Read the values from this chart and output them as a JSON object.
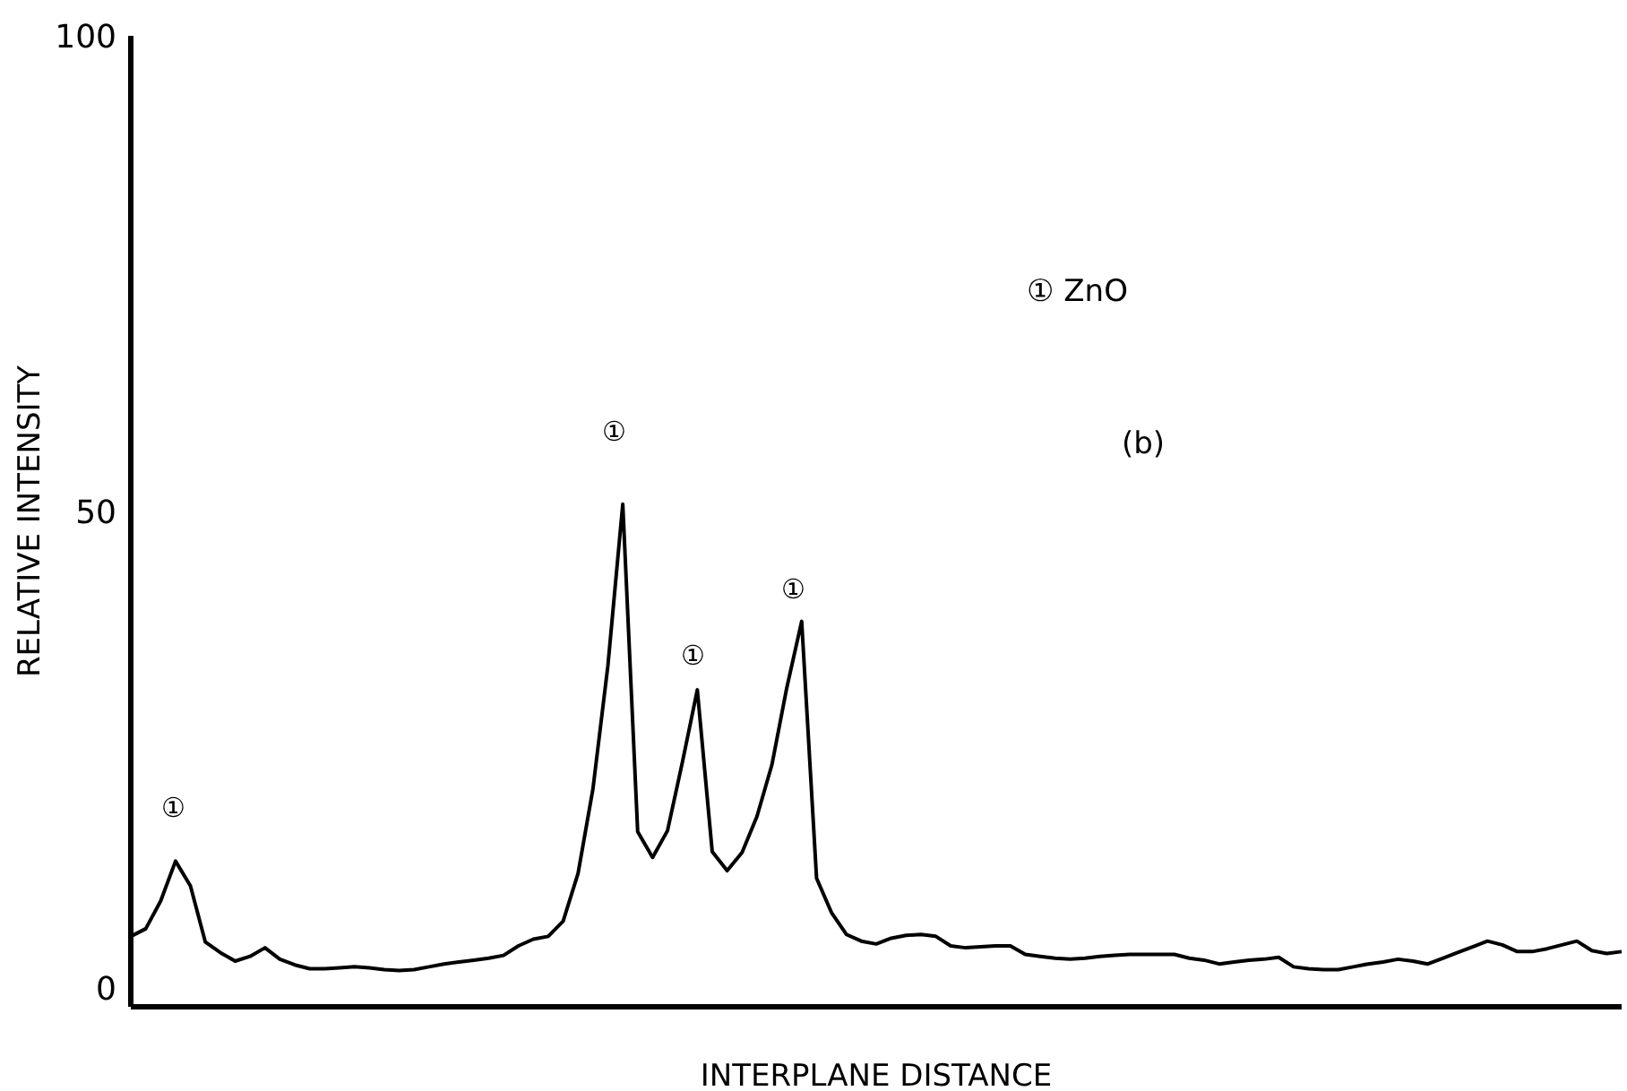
{
  "chart_data": {
    "type": "line",
    "xlabel": "INTERPLANE DISTANCE",
    "ylabel": "RELATIVE INTENSITY",
    "categories": [
      null,
      null,
      null,
      null,
      null,
      null,
      null,
      null,
      null,
      null,
      null,
      null,
      null,
      null,
      null,
      null,
      null,
      null,
      null,
      null,
      null,
      null,
      null,
      null,
      null,
      null,
      null,
      null,
      null,
      null,
      null,
      null,
      null,
      null,
      null,
      null,
      null,
      null,
      null,
      null,
      null,
      null,
      null,
      null,
      null,
      null,
      null,
      null,
      null,
      null,
      null,
      null,
      null,
      null,
      null,
      null,
      null,
      null,
      null,
      null,
      null,
      null,
      null,
      null,
      null,
      null,
      null,
      null,
      null,
      null,
      null,
      null,
      null,
      null,
      null,
      null,
      null,
      null,
      null,
      null,
      null,
      null,
      null,
      null,
      null,
      null,
      null,
      null,
      null,
      null,
      null,
      null,
      null,
      null,
      null,
      null,
      null,
      null,
      null,
      null,
      null
    ],
    "values": [
      5.4,
      6.2,
      9.1,
      13.3,
      10.7,
      4.8,
      3.7,
      2.8,
      3.3,
      4.2,
      3.0,
      2.4,
      2.0,
      2.0,
      2.1,
      2.2,
      2.1,
      1.9,
      1.8,
      1.9,
      2.2,
      2.5,
      2.7,
      2.9,
      3.1,
      3.4,
      4.4,
      5.1,
      5.4,
      7.0,
      12.0,
      20.9,
      33.8,
      50.8,
      16.4,
      13.7,
      16.5,
      23.7,
      31.3,
      14.3,
      12.3,
      14.2,
      18.0,
      23.4,
      31.5,
      38.5,
      11.5,
      7.9,
      5.6,
      4.9,
      4.6,
      5.2,
      5.5,
      5.6,
      5.4,
      4.4,
      4.2,
      4.3,
      4.4,
      4.4,
      3.5,
      3.3,
      3.1,
      3.0,
      3.1,
      3.3,
      3.4,
      3.5,
      3.5,
      3.5,
      3.5,
      3.1,
      2.9,
      2.5,
      2.7,
      2.9,
      3.0,
      3.2,
      2.2,
      2.0,
      1.9,
      1.9,
      2.2,
      2.5,
      2.7,
      3.0,
      2.8,
      2.5,
      3.1,
      3.7,
      4.3,
      4.9,
      4.5,
      3.8,
      3.8,
      4.1,
      4.5,
      4.9,
      3.9,
      3.6,
      3.8
    ],
    "color": "#000000",
    "ylim": [
      -2,
      100
    ],
    "yticks": [
      0,
      50,
      100
    ],
    "tick_labels": "y",
    "grid": false,
    "marker": "none",
    "line_style": "solid",
    "annotations": [
      "① ZnO",
      "(b)",
      "①",
      "①",
      "①",
      "①"
    ]
  }
}
